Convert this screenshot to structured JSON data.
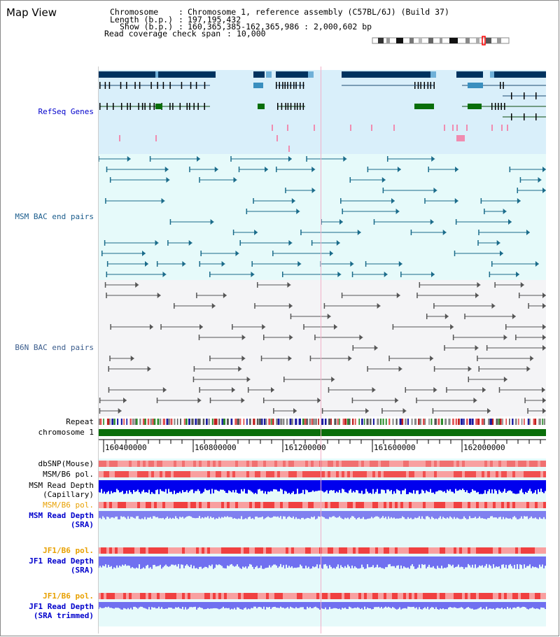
{
  "app": {
    "title": "Map View"
  },
  "header": {
    "chromosome_label": "Chromosome",
    "chromosome_value": "Chromosome 1, reference assembly (C57BL/6J) (Build 37)",
    "length_label": "Length (b.p.)",
    "length_value": "197,195,432",
    "show_label": "Show (b.p.)",
    "show_value": "160,365,385-162,365,986 : 2,000,602 bp",
    "coverage_label": "Read coverage check span",
    "coverage_value": "10,000"
  },
  "tracks": {
    "refseq": {
      "label": "RefSeq Genes",
      "color": "#0000cc",
      "bg": "#d9effa",
      "gene_dark": "#00335f",
      "gene_mid": "#3a8fbf",
      "gene_green": "#0a6e0a"
    },
    "msm_bac": {
      "label": "MSM BAC end pairs",
      "color": "#1a5c8c",
      "bg": "#e6fafa",
      "line": "#1a6b8a"
    },
    "b6n_bac": {
      "label": "B6N BAC end pairs",
      "color": "#3a5c8c",
      "bg": "#f4f4f6",
      "line": "#555555"
    },
    "repeat": {
      "label": "Repeat"
    },
    "chromosome": {
      "label": "chromosome 1",
      "color": "#0a6e0a"
    },
    "axis": {
      "ticks": [
        "160400000",
        "160800000",
        "161200000",
        "161600000",
        "162000000"
      ]
    },
    "dbsnp": {
      "label": "dbSNP(Mouse)"
    },
    "msm_b6_pol": {
      "label": "MSM/B6 pol."
    },
    "msm_read_depth_cap": {
      "label1": "MSM Read Depth",
      "label2": "(Capillary)"
    },
    "msm_b6_pol2": {
      "label": "MSM/B6 pol."
    },
    "msm_read_depth_sra": {
      "label1": "MSM Read Depth",
      "label2": "(SRA)"
    },
    "jf1_b6_pol": {
      "label": "JF1/B6 pol."
    },
    "jf1_read_depth_sra": {
      "label1": "JF1 Read Depth",
      "label2": "(SRA)"
    },
    "jf1_b6_pol2": {
      "label": "JF1/B6 pol."
    },
    "jf1_read_depth_trim": {
      "label1": "JF1 Read Depth",
      "label2": "(SRA trimmed)"
    }
  },
  "colors": {
    "gold": "#e8a000",
    "blue_label": "#0000cc",
    "depth_blue": "#0000ee",
    "depth_light": "#7f7ff0",
    "pol_red": "#f04040",
    "pol_pink": "#f8a0a0",
    "highlight": "#ff0000"
  }
}
